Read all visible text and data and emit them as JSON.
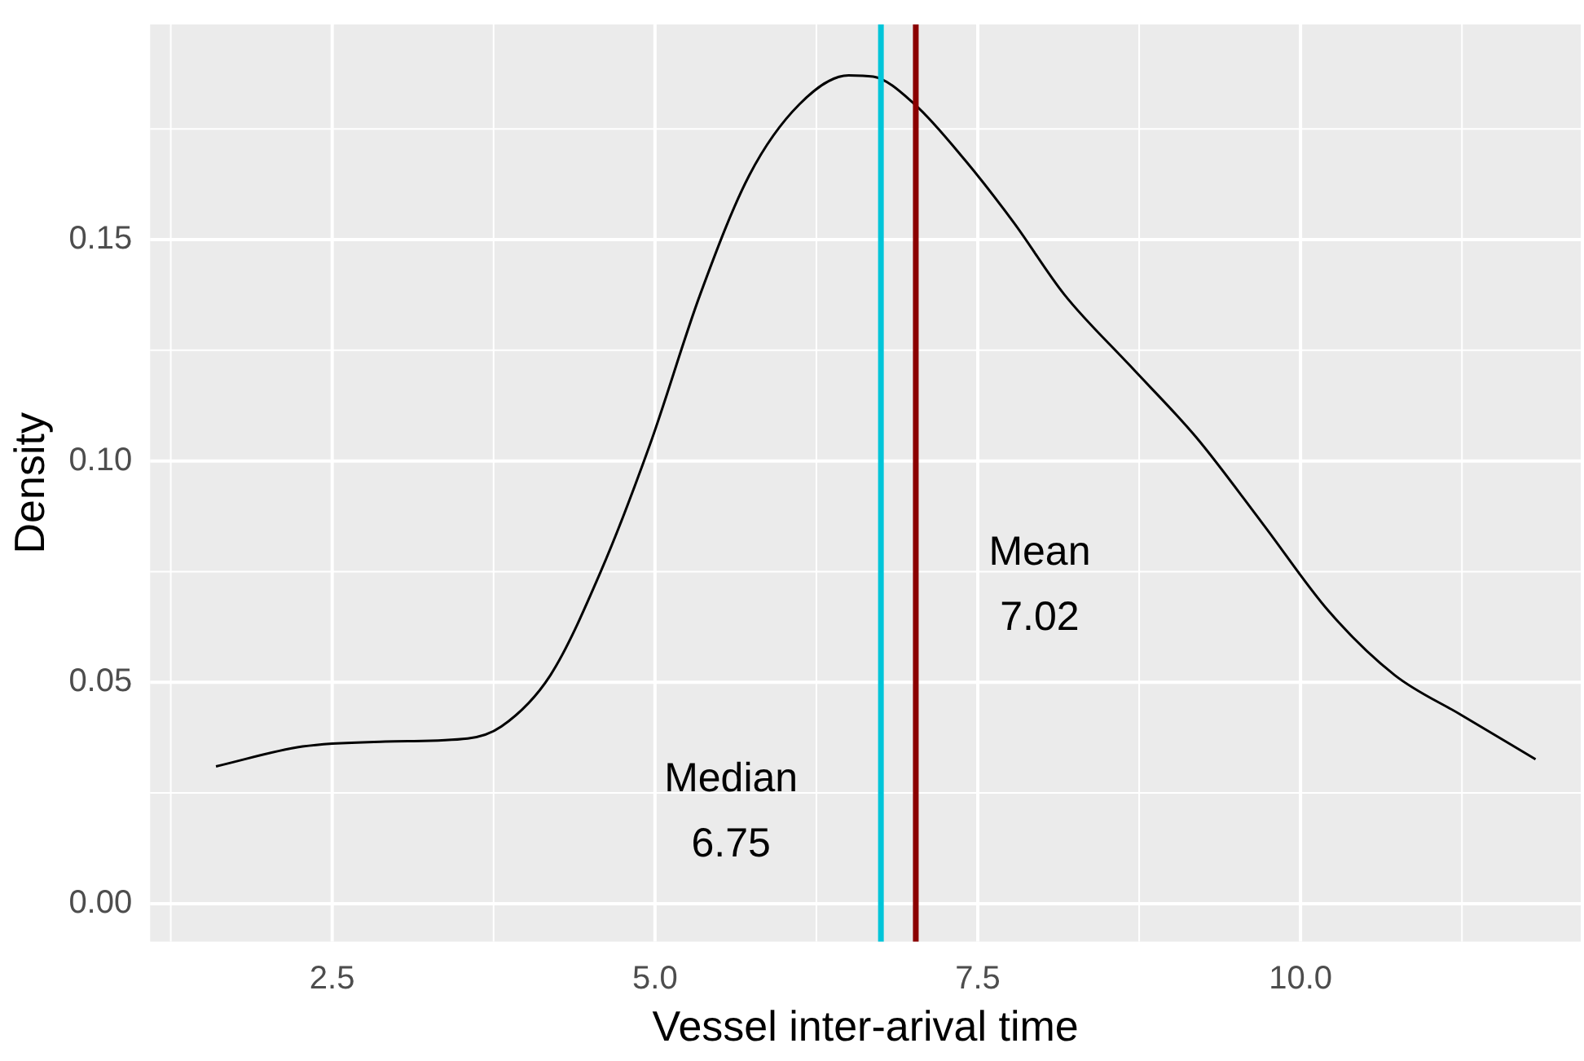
{
  "chart_data": {
    "type": "line",
    "xlabel": "Vessel inter-arival time",
    "ylabel": "Density",
    "x": [
      1.6,
      2.27,
      2.91,
      3.55,
      3.81,
      4.19,
      4.58,
      4.96,
      5.35,
      5.73,
      6.12,
      6.5,
      6.69,
      7.01,
      7.4,
      7.78,
      8.17,
      8.68,
      9.19,
      9.71,
      10.22,
      10.73,
      11.24,
      11.82
    ],
    "series": [
      {
        "color": "#000000",
        "values": [
          0.031,
          0.0355,
          0.0366,
          0.0373,
          0.04,
          0.0516,
          0.075,
          0.1036,
          0.1376,
          0.1645,
          0.1806,
          0.1871,
          0.1868,
          0.1806,
          0.168,
          0.1538,
          0.1376,
          0.1215,
          0.1054,
          0.0857,
          0.066,
          0.0516,
          0.0427,
          0.0326
        ]
      }
    ],
    "xlim": [
      1.09,
      12.17
    ],
    "xticks": [
      {
        "value": 2.5,
        "label": "2.5"
      },
      {
        "value": 5,
        "label": "5.0"
      },
      {
        "value": 7.5,
        "label": "7.5"
      },
      {
        "value": 10,
        "label": "10.0"
      }
    ],
    "ylim": [
      -0.0086,
      0.1986
    ],
    "yticks": [
      {
        "value": 0,
        "label": "0.00"
      },
      {
        "value": 0.05,
        "label": "0.05"
      },
      {
        "value": 0.1,
        "label": "0.10"
      },
      {
        "value": 0.15,
        "label": "0.15"
      }
    ],
    "ref_lines": [
      {
        "axis": "x",
        "value": 6.75,
        "label": "Median\n6.75",
        "color": "#00c5d9"
      },
      {
        "axis": "x",
        "value": 7.02,
        "label": "Mean\n7.02",
        "color": "#8b0000"
      }
    ],
    "grid": true,
    "marker": "none",
    "line_style": "solid",
    "legend": false
  }
}
